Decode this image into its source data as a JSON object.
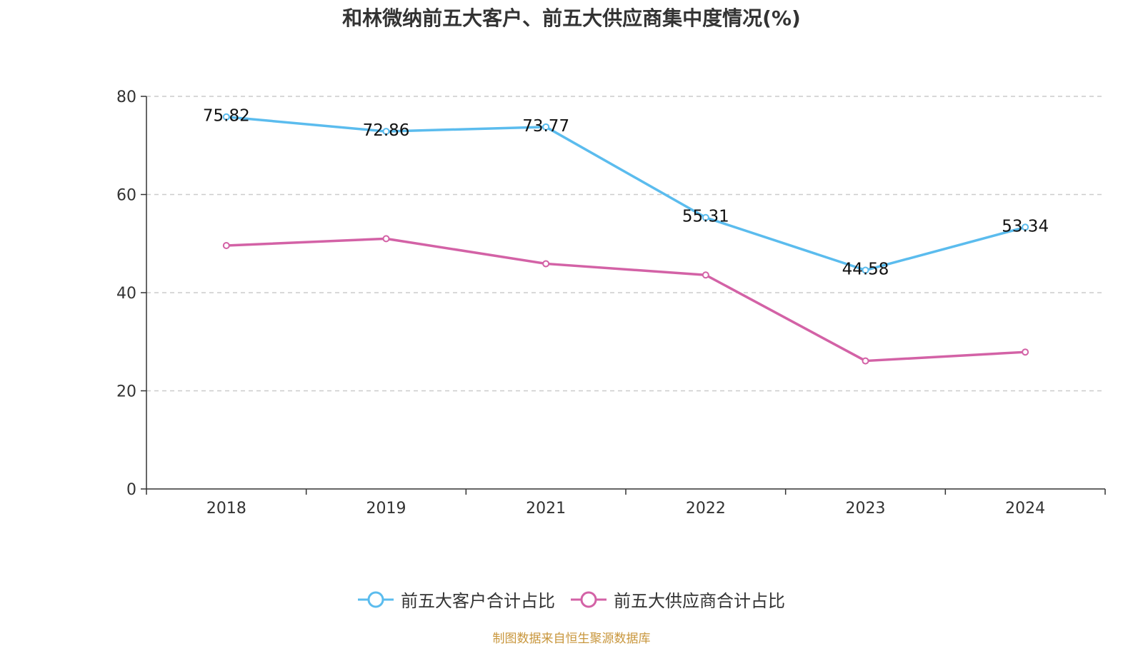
{
  "chart_data": {
    "type": "line",
    "title": "和林微纳前五大客户、前五大供应商集中度情况(%)",
    "categories": [
      "2018",
      "2019",
      "2021",
      "2022",
      "2023",
      "2024"
    ],
    "ylim": [
      0,
      80
    ],
    "yticks": [
      0,
      20,
      40,
      60,
      80
    ],
    "grid": true,
    "legend_position": "bottom",
    "series": [
      {
        "name": "前五大客户合计占比",
        "color": "#5bbcee",
        "values": [
          75.82,
          72.86,
          73.77,
          55.31,
          44.58,
          53.34
        ],
        "labels": [
          "75.82",
          "72.86",
          "73.77",
          "55.31",
          "44.58",
          "53.34"
        ]
      },
      {
        "name": "前五大供应商合计占比",
        "color": "#d362a6",
        "values": [
          49.6,
          51.0,
          45.9,
          43.6,
          26.1,
          27.9
        ],
        "labels": []
      }
    ]
  },
  "source_note": "制图数据来自恒生聚源数据库"
}
